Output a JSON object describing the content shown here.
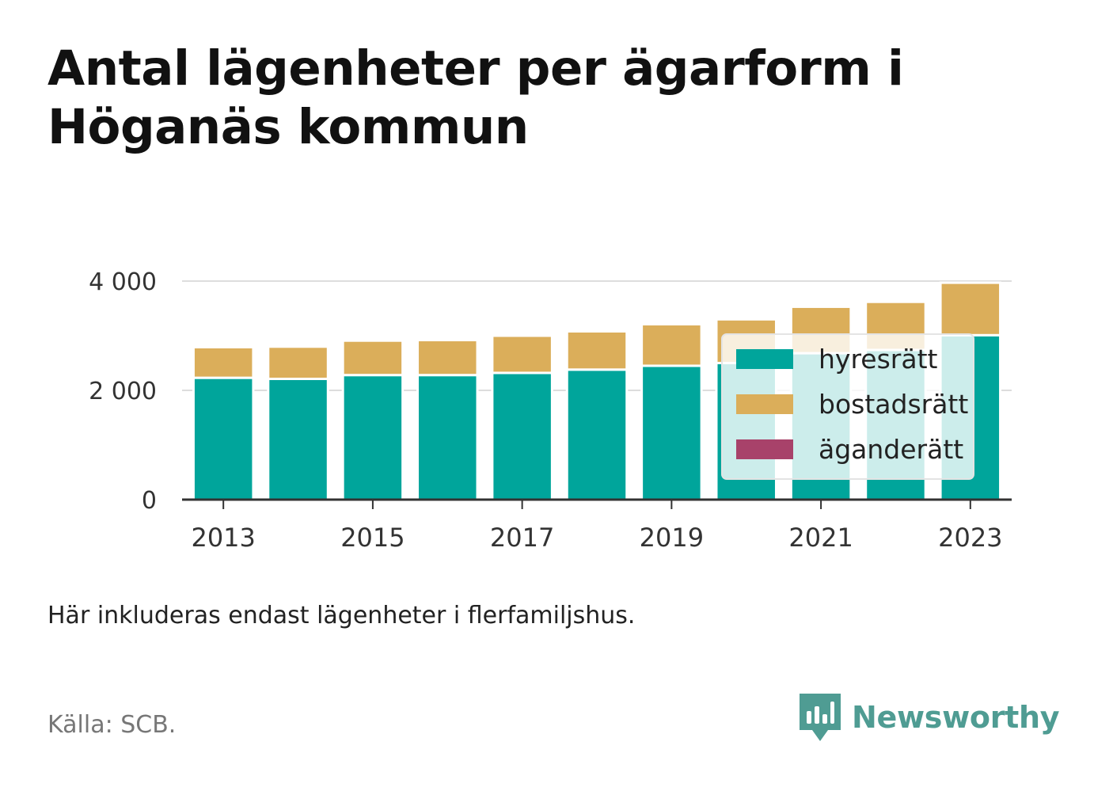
{
  "title_lines": [
    "Antal lägenheter per ägarform i",
    "Höganäs kommun"
  ],
  "note": "Här inkluderas endast lägenheter i flerfamiljshus.",
  "source": "Källa: SCB.",
  "brand": {
    "name": "Newsworthy",
    "icon": "newsworthy-logo-icon",
    "color": "#4f9c93"
  },
  "chart_data": {
    "type": "bar",
    "stacked": true,
    "categories": [
      "2013",
      "2014",
      "2015",
      "2016",
      "2017",
      "2018",
      "2019",
      "2020",
      "2021",
      "2022",
      "2023"
    ],
    "series": [
      {
        "name": "hyresrätt",
        "color": "#00a59b",
        "values": [
          2230,
          2210,
          2280,
          2280,
          2320,
          2380,
          2450,
          2500,
          2680,
          2740,
          3010
        ]
      },
      {
        "name": "bostadsrätt",
        "color": "#dbae5a",
        "values": [
          560,
          590,
          630,
          640,
          680,
          700,
          760,
          800,
          850,
          880,
          960
        ]
      },
      {
        "name": "äganderätt",
        "color": "#a8426a",
        "values": [
          0,
          0,
          0,
          0,
          0,
          0,
          0,
          0,
          0,
          0,
          0
        ]
      }
    ],
    "yticks": [
      0,
      2000,
      4000
    ],
    "ytick_labels": [
      "0",
      "2 000",
      "4 000"
    ],
    "xtick_labels": [
      "2013",
      "2015",
      "2017",
      "2019",
      "2021",
      "2023"
    ],
    "ylim": [
      0,
      4000
    ],
    "grid": true,
    "legend_position": "right"
  }
}
